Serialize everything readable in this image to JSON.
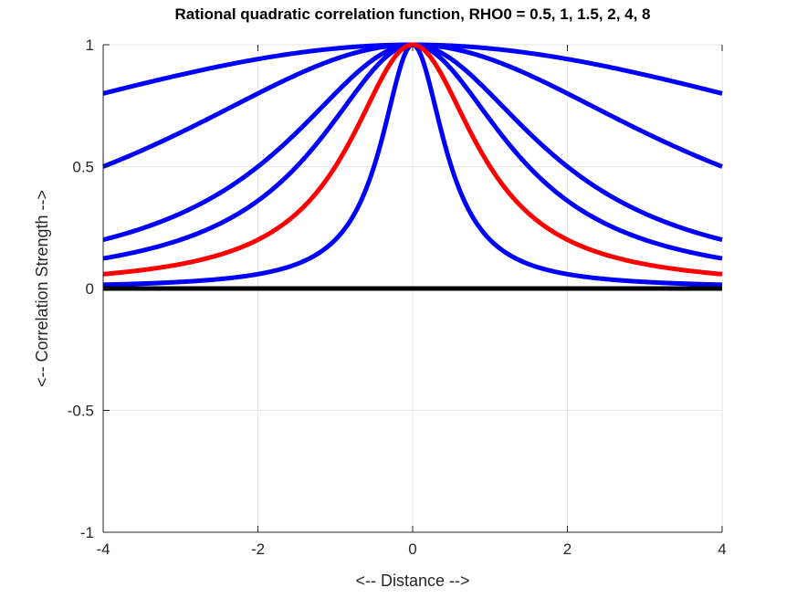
{
  "chart_data": {
    "type": "line",
    "title": "Rational quadratic correlation function, RHO0 = 0.5, 1, 1.5, 2, 4, 8",
    "xlabel": "<-- Distance -->",
    "ylabel": "<-- Correlation Strength -->",
    "xlim": [
      -4,
      4
    ],
    "ylim": [
      -1,
      1
    ],
    "xticks": [
      -4,
      -2,
      0,
      2,
      4
    ],
    "yticks": [
      -1,
      -0.5,
      0,
      0.5,
      1
    ],
    "xtick_labels": [
      "-4",
      "-2",
      "0",
      "2",
      "4"
    ],
    "ytick_labels": [
      "-1",
      "-0.5",
      "0",
      "0.5",
      "1"
    ],
    "grid": true,
    "function": "1/(1+(d/rho)^2)",
    "series": [
      {
        "name": "rho=0.5",
        "rho": 0.5,
        "color": "#0000ff"
      },
      {
        "name": "rho=1.5",
        "rho": 1.5,
        "color": "#0000ff"
      },
      {
        "name": "rho=2",
        "rho": 2,
        "color": "#0000ff"
      },
      {
        "name": "rho=4",
        "rho": 4,
        "color": "#0000ff"
      },
      {
        "name": "rho=8",
        "rho": 8,
        "color": "#0000ff"
      },
      {
        "name": "rho=1",
        "rho": 1,
        "color": "#ff0000"
      }
    ],
    "zero_line": {
      "y": 0,
      "color": "#000000"
    }
  }
}
